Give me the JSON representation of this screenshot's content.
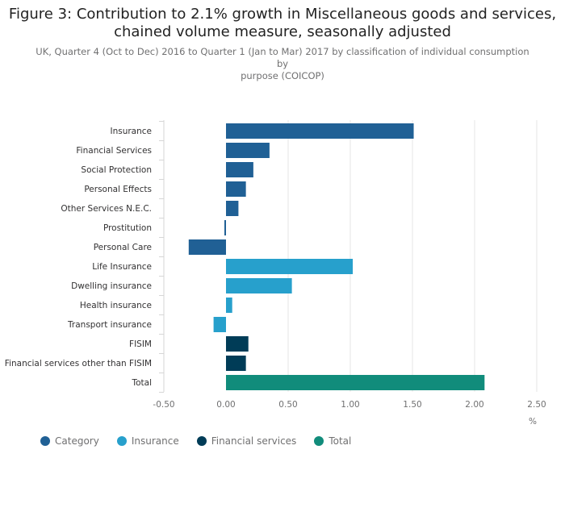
{
  "title_line1": "Figure 3: Contribution to 2.1% growth in Miscellaneous goods and services,",
  "title_line2": "chained volume measure, seasonally adjusted",
  "subtitle_line1": "UK, Quarter 4 (Oct to Dec) 2016 to Quarter 1 (Jan to Mar) 2017 by classification of individual consumption by",
  "subtitle_line2": "purpose (COICOP)",
  "colors": {
    "Category": "#206095",
    "Insurance": "#27a0cc",
    "Financial services": "#003c57",
    "Total": "#118c7b"
  },
  "chart_data": {
    "type": "bar",
    "orientation": "horizontal",
    "xlabel": "%",
    "xlim": [
      -0.5,
      2.5
    ],
    "xticks": [
      "-0.50",
      "0.00",
      "0.50",
      "1.00",
      "1.50",
      "2.00",
      "2.50"
    ],
    "grid": true,
    "legend_position": "bottom-left",
    "categories": [
      "Insurance",
      "Financial Services",
      "Social Protection",
      "Personal Effects",
      "Other Services N.E.C.",
      "Prostitution",
      "Personal Care",
      "Life Insurance",
      "Dwelling insurance",
      "Health insurance",
      "Transport insurance",
      "FISIM",
      "Financial services other than FISIM",
      "Total"
    ],
    "values": [
      1.51,
      0.35,
      0.22,
      0.16,
      0.1,
      -0.01,
      -0.3,
      1.02,
      0.53,
      0.05,
      -0.1,
      0.18,
      0.16,
      2.08
    ],
    "groups": [
      "Category",
      "Category",
      "Category",
      "Category",
      "Category",
      "Category",
      "Category",
      "Insurance",
      "Insurance",
      "Insurance",
      "Insurance",
      "Financial services",
      "Financial services",
      "Total"
    ],
    "series": [
      {
        "name": "Category"
      },
      {
        "name": "Insurance"
      },
      {
        "name": "Financial services"
      },
      {
        "name": "Total"
      }
    ]
  }
}
